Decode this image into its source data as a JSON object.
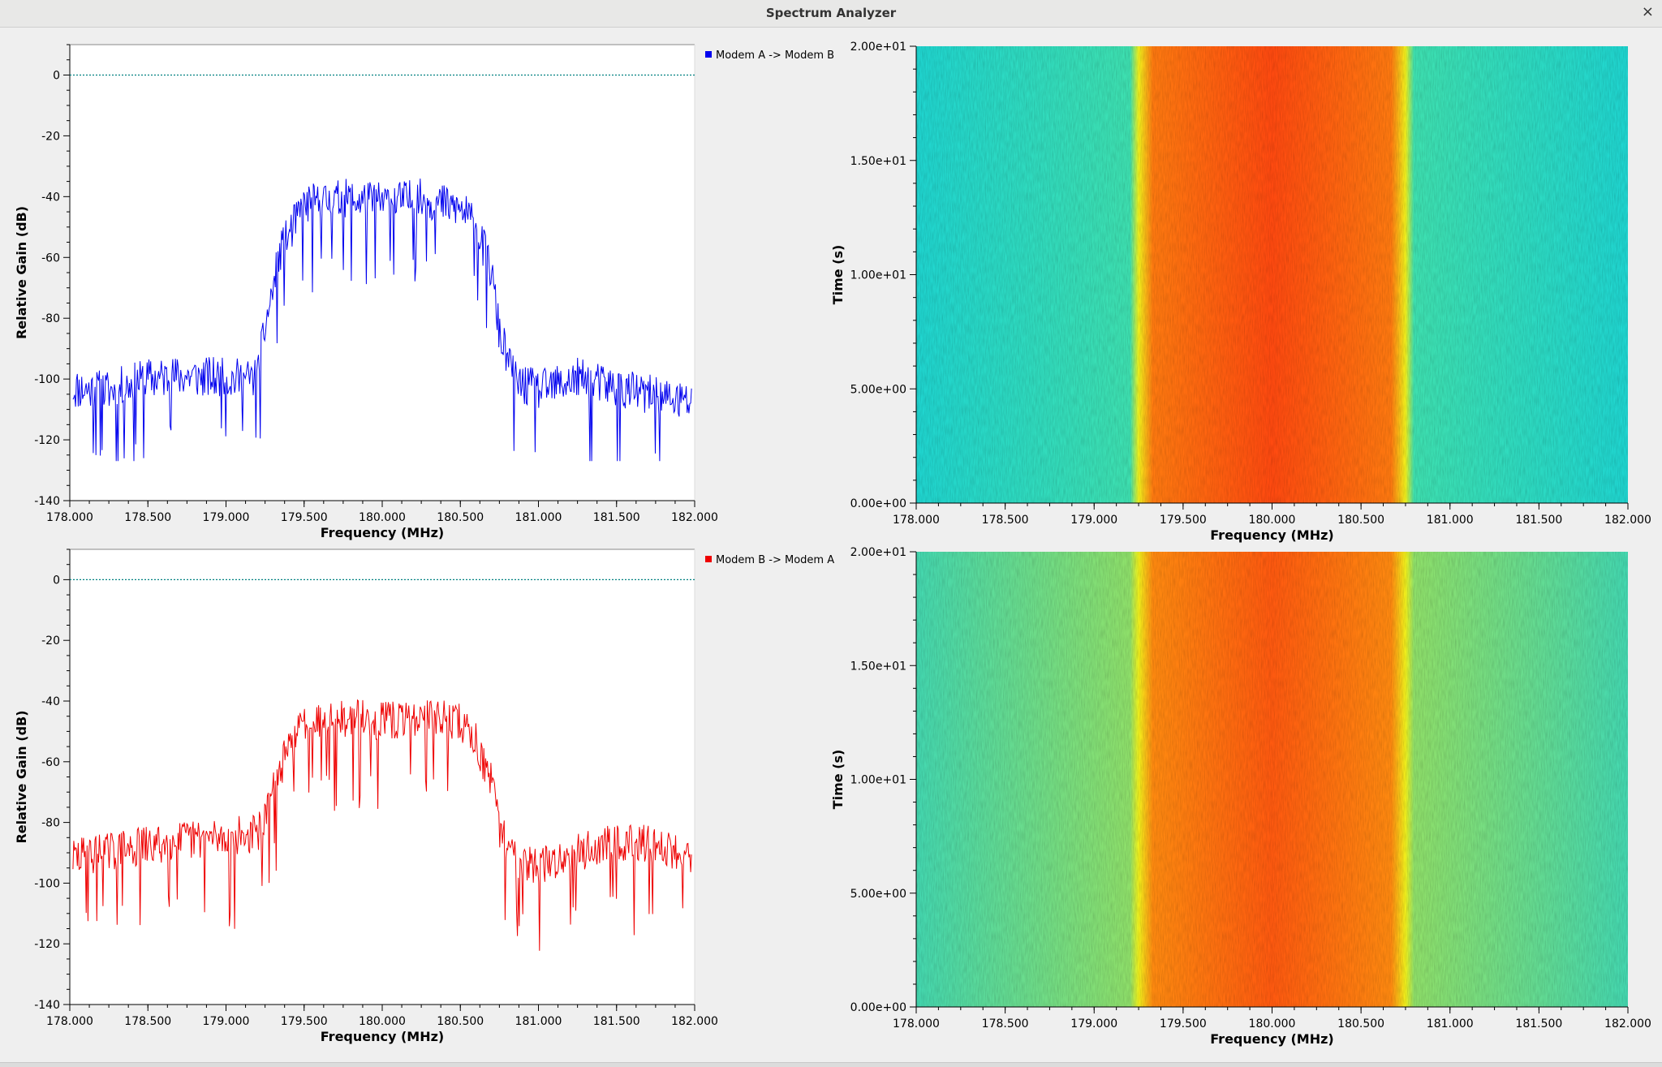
{
  "window": {
    "title": "Spectrum Analyzer",
    "close_glyph": "×"
  },
  "colors": {
    "trace_a": "#0000ee",
    "trace_b": "#ee0000",
    "ref_line": "#008080"
  },
  "chart_data": [
    {
      "type": "line",
      "title": "",
      "xlabel": "Frequency (MHz)",
      "ylabel": "Relative Gain (dB)",
      "xlim": [
        178.0,
        182.0
      ],
      "ylim": [
        -140,
        10
      ],
      "xticks": [
        "178.000",
        "178.500",
        "179.000",
        "179.500",
        "180.000",
        "180.500",
        "181.000",
        "181.500",
        "182.000"
      ],
      "yticks": [
        "0",
        "-20",
        "-40",
        "-60",
        "-80",
        "-100",
        "-120",
        "-140"
      ],
      "legend": {
        "placement": "top-right-outside",
        "entries": [
          "Modem A -> Modem B"
        ]
      },
      "reference_line_y": 0,
      "series": [
        {
          "name": "Modem A -> Modem B",
          "color": "#0000ee",
          "x": [
            178.0,
            178.25,
            178.5,
            178.75,
            179.0,
            179.2,
            179.25,
            179.35,
            179.5,
            179.75,
            180.0,
            180.25,
            180.5,
            180.6,
            180.7,
            180.75,
            180.85,
            181.0,
            181.25,
            181.5,
            181.75,
            182.0
          ],
          "y": [
            -103,
            -104,
            -100,
            -99,
            -100,
            -100,
            -83,
            -58,
            -43,
            -41,
            -42,
            -41,
            -44,
            -50,
            -65,
            -85,
            -101,
            -104,
            -100,
            -103,
            -106,
            -108
          ]
        }
      ]
    },
    {
      "type": "heatmap",
      "title": "",
      "xlabel": "Frequency (MHz)",
      "ylabel": "Time (s)",
      "xlim": [
        178.0,
        182.0
      ],
      "ylim": [
        0,
        20
      ],
      "xticks": [
        "178.000",
        "178.500",
        "179.000",
        "179.500",
        "180.000",
        "180.500",
        "181.000",
        "181.500",
        "182.000"
      ],
      "yticks": [
        "0.00e+00",
        "5.00e+00",
        "1.00e+01",
        "1.50e+01",
        "2.00e+01"
      ],
      "band_mhz": [
        179.25,
        180.75
      ],
      "colormap": [
        "#1fd5d0",
        "#3ee0b0",
        "#f2f21c",
        "#ff7a10",
        "#ff4a10"
      ]
    },
    {
      "type": "line",
      "title": "",
      "xlabel": "Frequency (MHz)",
      "ylabel": "Relative Gain (dB)",
      "xlim": [
        178.0,
        182.0
      ],
      "ylim": [
        -140,
        10
      ],
      "xticks": [
        "178.000",
        "178.500",
        "179.000",
        "179.500",
        "180.000",
        "180.500",
        "181.000",
        "181.500",
        "182.000"
      ],
      "yticks": [
        "0",
        "-20",
        "-40",
        "-60",
        "-80",
        "-100",
        "-120",
        "-140"
      ],
      "legend": {
        "placement": "top-right-outside",
        "entries": [
          "Modem B -> Modem A"
        ]
      },
      "reference_line_y": 0,
      "series": [
        {
          "name": "Modem B -> Modem A",
          "color": "#ee0000",
          "x": [
            178.0,
            178.25,
            178.5,
            178.75,
            179.0,
            179.2,
            179.25,
            179.35,
            179.5,
            179.75,
            180.0,
            180.25,
            180.5,
            180.6,
            180.7,
            180.75,
            180.85,
            181.0,
            181.25,
            181.5,
            181.75,
            182.0
          ],
          "y": [
            -92,
            -90,
            -88,
            -86,
            -85,
            -84,
            -80,
            -62,
            -47,
            -46,
            -47,
            -46,
            -47,
            -53,
            -68,
            -82,
            -92,
            -95,
            -90,
            -87,
            -88,
            -91
          ]
        }
      ]
    },
    {
      "type": "heatmap",
      "title": "",
      "xlabel": "Frequency (MHz)",
      "ylabel": "Time (s)",
      "xlim": [
        178.0,
        182.0
      ],
      "ylim": [
        0,
        20
      ],
      "xticks": [
        "178.000",
        "178.500",
        "179.000",
        "179.500",
        "180.000",
        "180.500",
        "181.000",
        "181.500",
        "182.000"
      ],
      "yticks": [
        "0.00e+00",
        "5.00e+00",
        "1.00e+01",
        "1.50e+01",
        "2.00e+01"
      ],
      "band_mhz": [
        179.25,
        180.75
      ],
      "colormap": [
        "#44d8b0",
        "#8fe06a",
        "#f2f21c",
        "#ff8a10",
        "#ff5a10"
      ]
    }
  ]
}
